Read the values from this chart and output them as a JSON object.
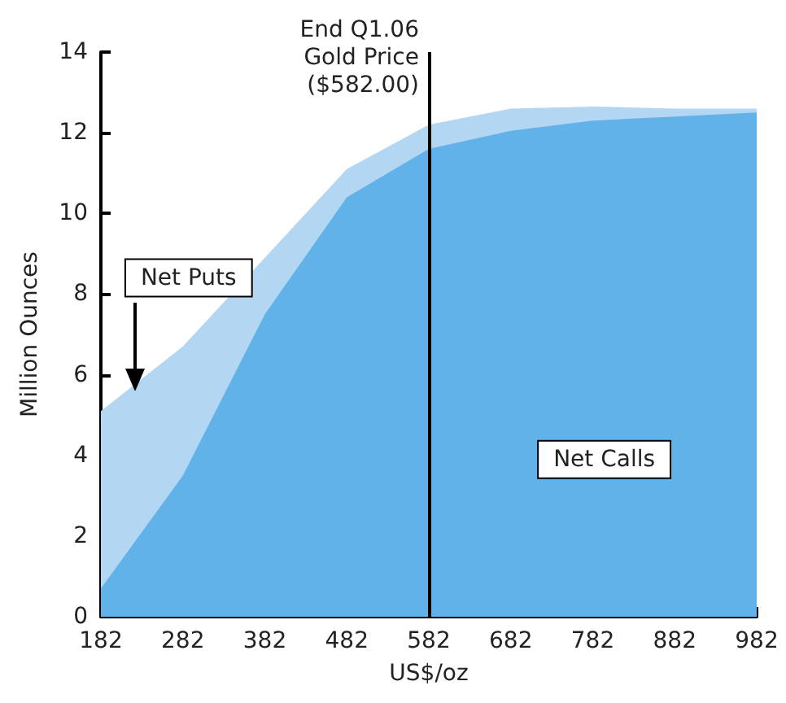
{
  "chart_data": {
    "type": "area",
    "xlabel": "US$/oz",
    "ylabel": "Million Ounces",
    "x": [
      182,
      282,
      382,
      482,
      582,
      682,
      782,
      882,
      982
    ],
    "series": [
      {
        "name": "Net Puts",
        "color": "#b3d6f3",
        "values": [
          5.1,
          6.7,
          8.9,
          11.1,
          12.2,
          12.6,
          12.65,
          12.6,
          12.6
        ]
      },
      {
        "name": "Net Calls",
        "color": "#62b2ea",
        "values": [
          0.7,
          3.5,
          7.5,
          10.4,
          11.6,
          12.05,
          12.3,
          12.4,
          12.5
        ]
      }
    ],
    "xlim": [
      182,
      982
    ],
    "xticks": [
      182,
      282,
      382,
      482,
      582,
      682,
      782,
      882,
      982
    ],
    "ylim": [
      0,
      14
    ],
    "yticks": [
      0,
      2,
      4,
      6,
      8,
      10,
      12,
      14
    ],
    "ref_lines": [
      {
        "axis": "x",
        "value": 582,
        "label": "End Q1.06\nGold Price\n($582.00)",
        "color": "#000000"
      }
    ],
    "grid": false,
    "legend": false
  }
}
